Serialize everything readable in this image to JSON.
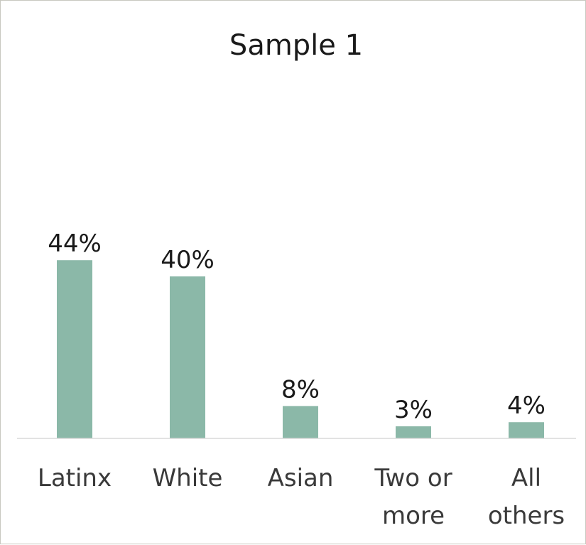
{
  "chart_data": {
    "type": "bar",
    "title": "Sample 1",
    "xlabel": "",
    "ylabel": "",
    "categories": [
      [
        "Latinx"
      ],
      [
        "White"
      ],
      [
        "Asian"
      ],
      [
        "Two or",
        "more"
      ],
      [
        "All",
        "others"
      ]
    ],
    "values": [
      44,
      40,
      8,
      3,
      4
    ],
    "value_labels": [
      "44%",
      "40%",
      "8%",
      "3%",
      "4%"
    ],
    "ylim": [
      0,
      50
    ],
    "grid": false,
    "legend": "none",
    "colors": {
      "bar": "#8bb8a8",
      "axis": "#d9d9d9",
      "text": "#1a1a1a",
      "border": "#c8c8c0"
    }
  }
}
